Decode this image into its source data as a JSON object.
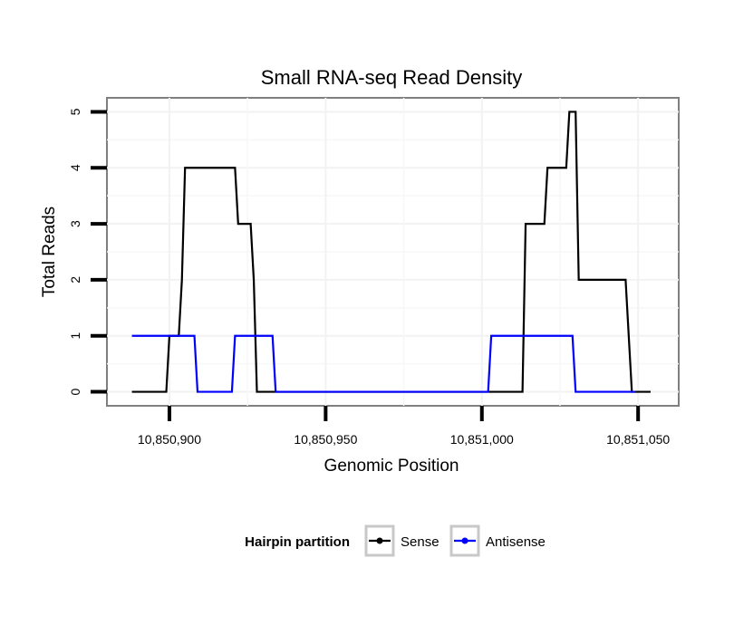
{
  "chart_data": {
    "type": "line",
    "title": "Small RNA-seq Read Density",
    "xlabel": "Genomic Position",
    "ylabel": "Total Reads",
    "xlim": [
      10850880,
      10851063
    ],
    "ylim": [
      -0.25,
      5.25
    ],
    "x_ticks": [
      10850900,
      10850950,
      10851000,
      10851050
    ],
    "x_tick_labels": [
      "10,850,900",
      "10,850,950",
      "10,851,000",
      "10,851,050"
    ],
    "y_ticks": [
      0,
      1,
      2,
      3,
      4,
      5
    ],
    "y_tick_labels": [
      "0",
      "1",
      "2",
      "3",
      "4",
      "5"
    ],
    "grid": true,
    "legend": {
      "title": "Hairpin partition",
      "position": "bottom"
    },
    "series": [
      {
        "name": "Sense",
        "color": "#000000",
        "x": [
          10850888,
          10850899,
          10850900,
          10850903,
          10850904,
          10850905,
          10850921,
          10850922,
          10850926,
          10850927,
          10850928,
          10851013,
          10851014,
          10851020,
          10851021,
          10851027,
          10851028,
          10851030,
          10851031,
          10851033,
          10851046,
          10851048,
          10851054
        ],
        "values": [
          0,
          0,
          1,
          1,
          2,
          4,
          4,
          3,
          3,
          2,
          0,
          0,
          3,
          3,
          4,
          4,
          5,
          5,
          2,
          2,
          2,
          0,
          0
        ]
      },
      {
        "name": "Antisense",
        "color": "#0000ff",
        "x": [
          10850888,
          10850896,
          10850900,
          10850908,
          10850909,
          10850920,
          10850921,
          10850933,
          10850934,
          10851002,
          10851003,
          10851029,
          10851030,
          10851049
        ],
        "values": [
          1,
          1,
          1,
          1,
          0,
          0,
          1,
          1,
          0,
          0,
          1,
          1,
          0,
          0
        ]
      }
    ]
  }
}
